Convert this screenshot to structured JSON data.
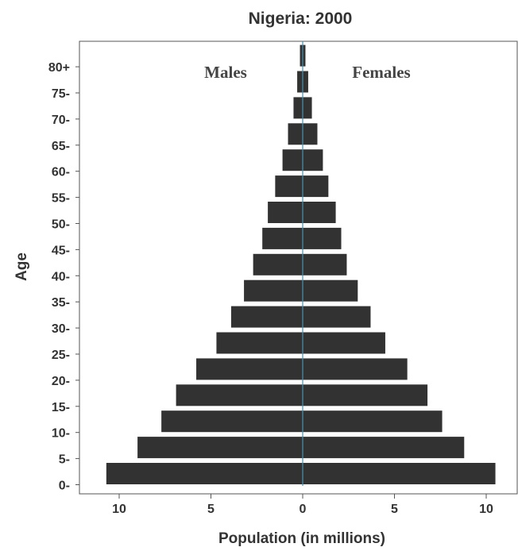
{
  "chart_data": {
    "type": "bar",
    "title": "Nigeria: 2000",
    "xlabel": "Population (in millions)",
    "ylabel": "Age",
    "orientation": "horizontal-population-pyramid",
    "categories": [
      "0-",
      "5-",
      "10-",
      "15-",
      "20-",
      "25-",
      "30-",
      "35-",
      "40-",
      "45-",
      "50-",
      "55-",
      "60-",
      "65-",
      "70-",
      "75-",
      "80+"
    ],
    "series": [
      {
        "name": "Males",
        "values": [
          10.7,
          9.0,
          7.7,
          6.9,
          5.8,
          4.7,
          3.9,
          3.2,
          2.7,
          2.2,
          1.9,
          1.5,
          1.1,
          0.8,
          0.5,
          0.3,
          0.15
        ]
      },
      {
        "name": "Females",
        "values": [
          10.5,
          8.8,
          7.6,
          6.8,
          5.7,
          4.5,
          3.7,
          3.0,
          2.4,
          2.1,
          1.8,
          1.4,
          1.1,
          0.8,
          0.5,
          0.3,
          0.15
        ]
      }
    ],
    "xticks": [
      "10",
      "5",
      "0",
      "5",
      "10"
    ],
    "xlim": [
      -11.7,
      11.7
    ],
    "grid": false,
    "colors": {
      "bar": "#323232",
      "center_line": "#4a8fb0",
      "frame": "#555555",
      "text": "#333333"
    }
  }
}
